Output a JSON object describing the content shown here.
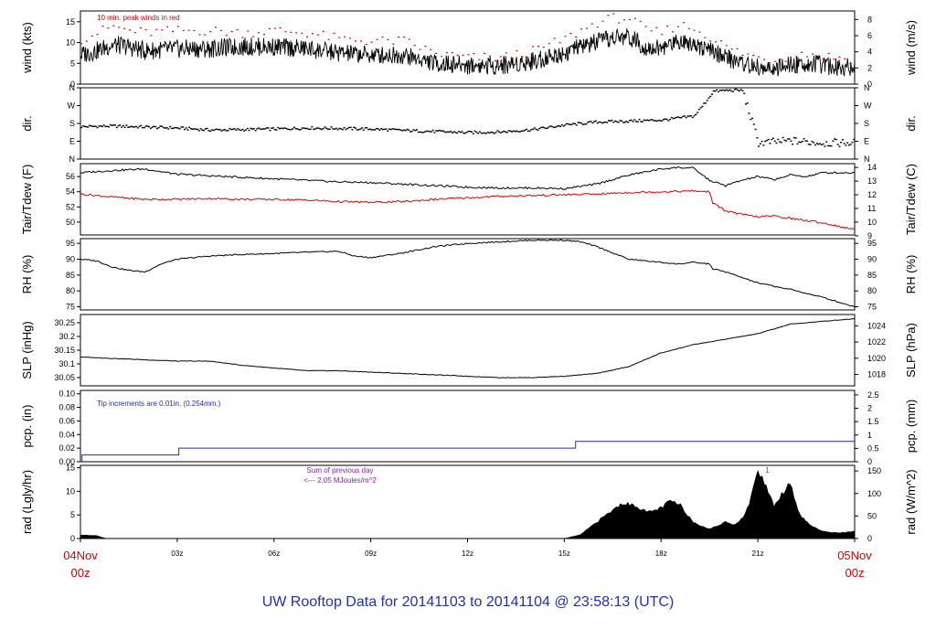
{
  "title": "UW Rooftop Data for 20141103  to  20141104 @ 23:58:13  (UTC)",
  "chart_data": [
    {
      "type": "line",
      "id": "wind",
      "ylabel": "wind (kts)",
      "y2label": "wind (m/s)",
      "ylim": [
        0,
        17.6
      ],
      "yticks": [
        0,
        5,
        10,
        15
      ],
      "y2ticks": [
        0,
        2,
        4,
        6,
        8
      ],
      "annotation": "10 min. peak winds in red",
      "series": [
        {
          "color": "#000000",
          "style": "line",
          "x": [
            0,
            0.5,
            1,
            1.5,
            2,
            3,
            4,
            5,
            6,
            7,
            8,
            9,
            10,
            11,
            12,
            13,
            14,
            14.5,
            15,
            15.5,
            16,
            16.5,
            17,
            17.5,
            18,
            18.5,
            19,
            19.5,
            20,
            20.5,
            21,
            21.5,
            22,
            22.5,
            23,
            24
          ],
          "y": [
            7,
            8,
            9.5,
            9,
            8,
            8.5,
            8.5,
            9,
            9,
            8.5,
            7.5,
            7,
            7,
            5,
            4.5,
            4.5,
            5.5,
            6.5,
            7.5,
            9,
            10,
            11,
            11.5,
            9,
            8.5,
            10.5,
            10,
            8,
            6.5,
            5,
            4,
            3.5,
            4.5,
            5,
            4.5,
            4
          ]
        },
        {
          "color": "#dd0000",
          "style": "dots",
          "x": [
            0,
            0.5,
            1,
            1.5,
            2,
            3,
            4,
            5,
            6,
            7,
            8,
            9,
            10,
            11,
            12,
            13,
            14,
            14.5,
            15,
            15.5,
            16,
            16.5,
            17,
            17.5,
            18,
            18.5,
            19,
            19.5,
            20,
            20.5,
            21,
            21.5,
            22,
            22.5,
            23,
            24
          ],
          "y": [
            11,
            12.5,
            14,
            13,
            12.5,
            13,
            13,
            12.5,
            13,
            12.5,
            11,
            10.5,
            10.5,
            7.5,
            6.5,
            6.5,
            8,
            9.5,
            11,
            13,
            15,
            16,
            16,
            13,
            12.5,
            14.5,
            13.5,
            11.5,
            9,
            7.5,
            6.5,
            6,
            7,
            7.5,
            7,
            6
          ]
        }
      ]
    },
    {
      "type": "scatter",
      "id": "dir",
      "ylabel": "dir.",
      "y2label": "dir.",
      "ylim": [
        0,
        360
      ],
      "ytick_labels": [
        "N",
        "E",
        "S",
        "W",
        "N"
      ],
      "series": [
        {
          "color": "#000000",
          "style": "dots",
          "x": [
            0,
            1,
            2,
            3,
            4,
            5,
            6,
            7,
            8,
            9,
            10,
            11,
            12,
            13,
            14,
            15,
            16,
            17,
            18,
            19,
            19.3,
            19.6,
            20,
            20.5,
            21,
            21.5,
            22,
            23,
            24
          ],
          "y": [
            167,
            170,
            165,
            160,
            150,
            152,
            155,
            160,
            158,
            155,
            148,
            142,
            137,
            140,
            152,
            175,
            190,
            195,
            200,
            220,
            280,
            345,
            350,
            350,
            85,
            90,
            95,
            85,
            85
          ]
        }
      ]
    },
    {
      "type": "line",
      "id": "temp",
      "ylabel": "Tair/Tdew (F)",
      "y2label": "Tair/Tdew (C)",
      "ylim": [
        48.3,
        57.7
      ],
      "yticks": [
        50,
        52,
        54,
        56
      ],
      "y2ticks": [
        9,
        10,
        11,
        12,
        13,
        14
      ],
      "series": [
        {
          "color": "#000000",
          "style": "line",
          "x": [
            0,
            1,
            2,
            3,
            4,
            5,
            6,
            7,
            8,
            9,
            10,
            11,
            12,
            13,
            14,
            15,
            16,
            17,
            18,
            18.5,
            19,
            19.5,
            20,
            20.5,
            21,
            21.5,
            22,
            22.5,
            23,
            24
          ],
          "y": [
            56.5,
            56.8,
            57,
            56.3,
            56.1,
            55.9,
            55.7,
            55.5,
            55.3,
            55.2,
            55,
            54.8,
            54.6,
            54.5,
            54.5,
            54.4,
            55,
            56.2,
            57,
            57.2,
            57.1,
            55.5,
            54.8,
            55.5,
            56,
            55.6,
            56.2,
            56,
            56.5,
            56.5
          ]
        },
        {
          "color": "#dd0000",
          "style": "line",
          "x": [
            0,
            1,
            2,
            3,
            4,
            5,
            6,
            7,
            8,
            9,
            10,
            11,
            12,
            13,
            14,
            15,
            16,
            17,
            18,
            19,
            19.5,
            19.6,
            20,
            20.5,
            21,
            21.5,
            22,
            23,
            24
          ],
          "y": [
            53.7,
            53.3,
            53,
            53,
            53.1,
            53,
            53,
            52.9,
            52.7,
            52.6,
            52.7,
            53,
            53.2,
            53.4,
            53.5,
            53.6,
            53.7,
            53.9,
            54,
            54.1,
            54,
            52.5,
            51.5,
            51,
            50.7,
            50.8,
            50.5,
            49.9,
            49
          ]
        }
      ]
    },
    {
      "type": "line",
      "id": "rh",
      "ylabel": "RH (%)",
      "y2label": "RH (%)",
      "ylim": [
        74,
        96.5
      ],
      "yticks": [
        75,
        80,
        85,
        90,
        95
      ],
      "y2ticks": [
        75,
        80,
        85,
        90,
        95
      ],
      "series": [
        {
          "color": "#000000",
          "style": "line",
          "x": [
            0,
            0.5,
            1,
            1.5,
            2,
            2.5,
            3,
            4,
            5,
            6,
            7,
            8,
            8.5,
            9,
            10,
            11,
            12,
            13,
            14,
            15,
            15.5,
            16,
            17,
            18,
            18.5,
            19,
            19.5,
            19.6,
            20,
            21,
            22,
            23,
            24
          ],
          "y": [
            90,
            89.5,
            87.5,
            86.5,
            86,
            88.5,
            90,
            91,
            91.5,
            91.8,
            92.2,
            92.5,
            91,
            90.5,
            92,
            94,
            95,
            95.5,
            96,
            96,
            95.5,
            94,
            90,
            89,
            88.5,
            89,
            88.5,
            87,
            86,
            82.5,
            80.5,
            78,
            75
          ]
        }
      ]
    },
    {
      "type": "line",
      "id": "slp",
      "ylabel": "SLP (inHg)",
      "y2label": "SLP (hPa)",
      "ylim": [
        30.02,
        30.28
      ],
      "yticks": [
        30.05,
        30.1,
        30.15,
        30.2,
        30.25
      ],
      "y2ticks": [
        1018,
        1020,
        1022,
        1024
      ],
      "series": [
        {
          "color": "#000000",
          "style": "line",
          "x": [
            0,
            1,
            2,
            3,
            4,
            5,
            6,
            7,
            8,
            9,
            10,
            11,
            12,
            13,
            14,
            15,
            16,
            17,
            18,
            19,
            20,
            21,
            22,
            23,
            24
          ],
          "y": [
            30.125,
            30.12,
            30.115,
            30.11,
            30.11,
            30.095,
            30.085,
            30.075,
            30.075,
            30.07,
            30.065,
            30.06,
            30.055,
            30.05,
            30.05,
            30.055,
            30.065,
            30.09,
            30.14,
            30.17,
            30.19,
            30.21,
            30.245,
            30.255,
            30.265
          ]
        }
      ]
    },
    {
      "type": "line",
      "id": "pcp",
      "ylabel": "pcp. (in)",
      "y2label": "pcp. (mm)",
      "ylim": [
        0,
        0.105
      ],
      "yticks": [
        0,
        0.02,
        0.04,
        0.06,
        0.08,
        0.1
      ],
      "ytick_labels": [
        "0.00",
        "0.02",
        "0.04",
        "0.06",
        "0.08",
        "0.10"
      ],
      "y2ticks": [
        0,
        0.5,
        1,
        1.5,
        2,
        2.5
      ],
      "annotation": "Tip increments are 0.01in. (0.254mm.)",
      "series": [
        {
          "color": "#1f2fbf",
          "style": "step",
          "x": [
            0,
            0.05,
            3.05,
            15.35,
            24
          ],
          "y": [
            0,
            0.01,
            0.02,
            0.03,
            0.03
          ]
        }
      ]
    },
    {
      "type": "area",
      "id": "rad",
      "ylabel": "rad (Lgly/hr)",
      "y2label": "rad (W/m^2)",
      "ylim": [
        0,
        15.5
      ],
      "yticks": [
        0,
        5,
        10,
        15
      ],
      "y2ticks": [
        0,
        50,
        100,
        150
      ],
      "annotation": [
        "Sum of previous day",
        "<--- 2.05 MJoules/m^2"
      ],
      "marker_label": "1",
      "series": [
        {
          "color": "#000000",
          "style": "area",
          "x": [
            0,
            0.5,
            0.8,
            15,
            15.5,
            16,
            16.5,
            16.8,
            17.2,
            17.6,
            18,
            18.3,
            18.6,
            19,
            19.5,
            20,
            20.3,
            20.6,
            20.8,
            21,
            21.2,
            21.5,
            21.8,
            22,
            22.3,
            22.6,
            23,
            23.5,
            24
          ],
          "y": [
            0.8,
            0.6,
            0,
            0,
            0.8,
            3.5,
            6,
            7.5,
            7,
            5.5,
            6.5,
            8,
            7,
            3.5,
            2,
            3.5,
            3,
            5,
            9,
            14.5,
            12,
            7,
            10,
            12,
            5,
            3,
            1.5,
            1.2,
            1.5
          ]
        }
      ]
    }
  ],
  "xaxis": {
    "ticks": [
      "03z",
      "06z",
      "09z",
      "12z",
      "15z",
      "18z",
      "21z"
    ],
    "start_label": [
      "04Nov",
      "00z"
    ],
    "end_label": [
      "05Nov",
      "00z"
    ]
  }
}
